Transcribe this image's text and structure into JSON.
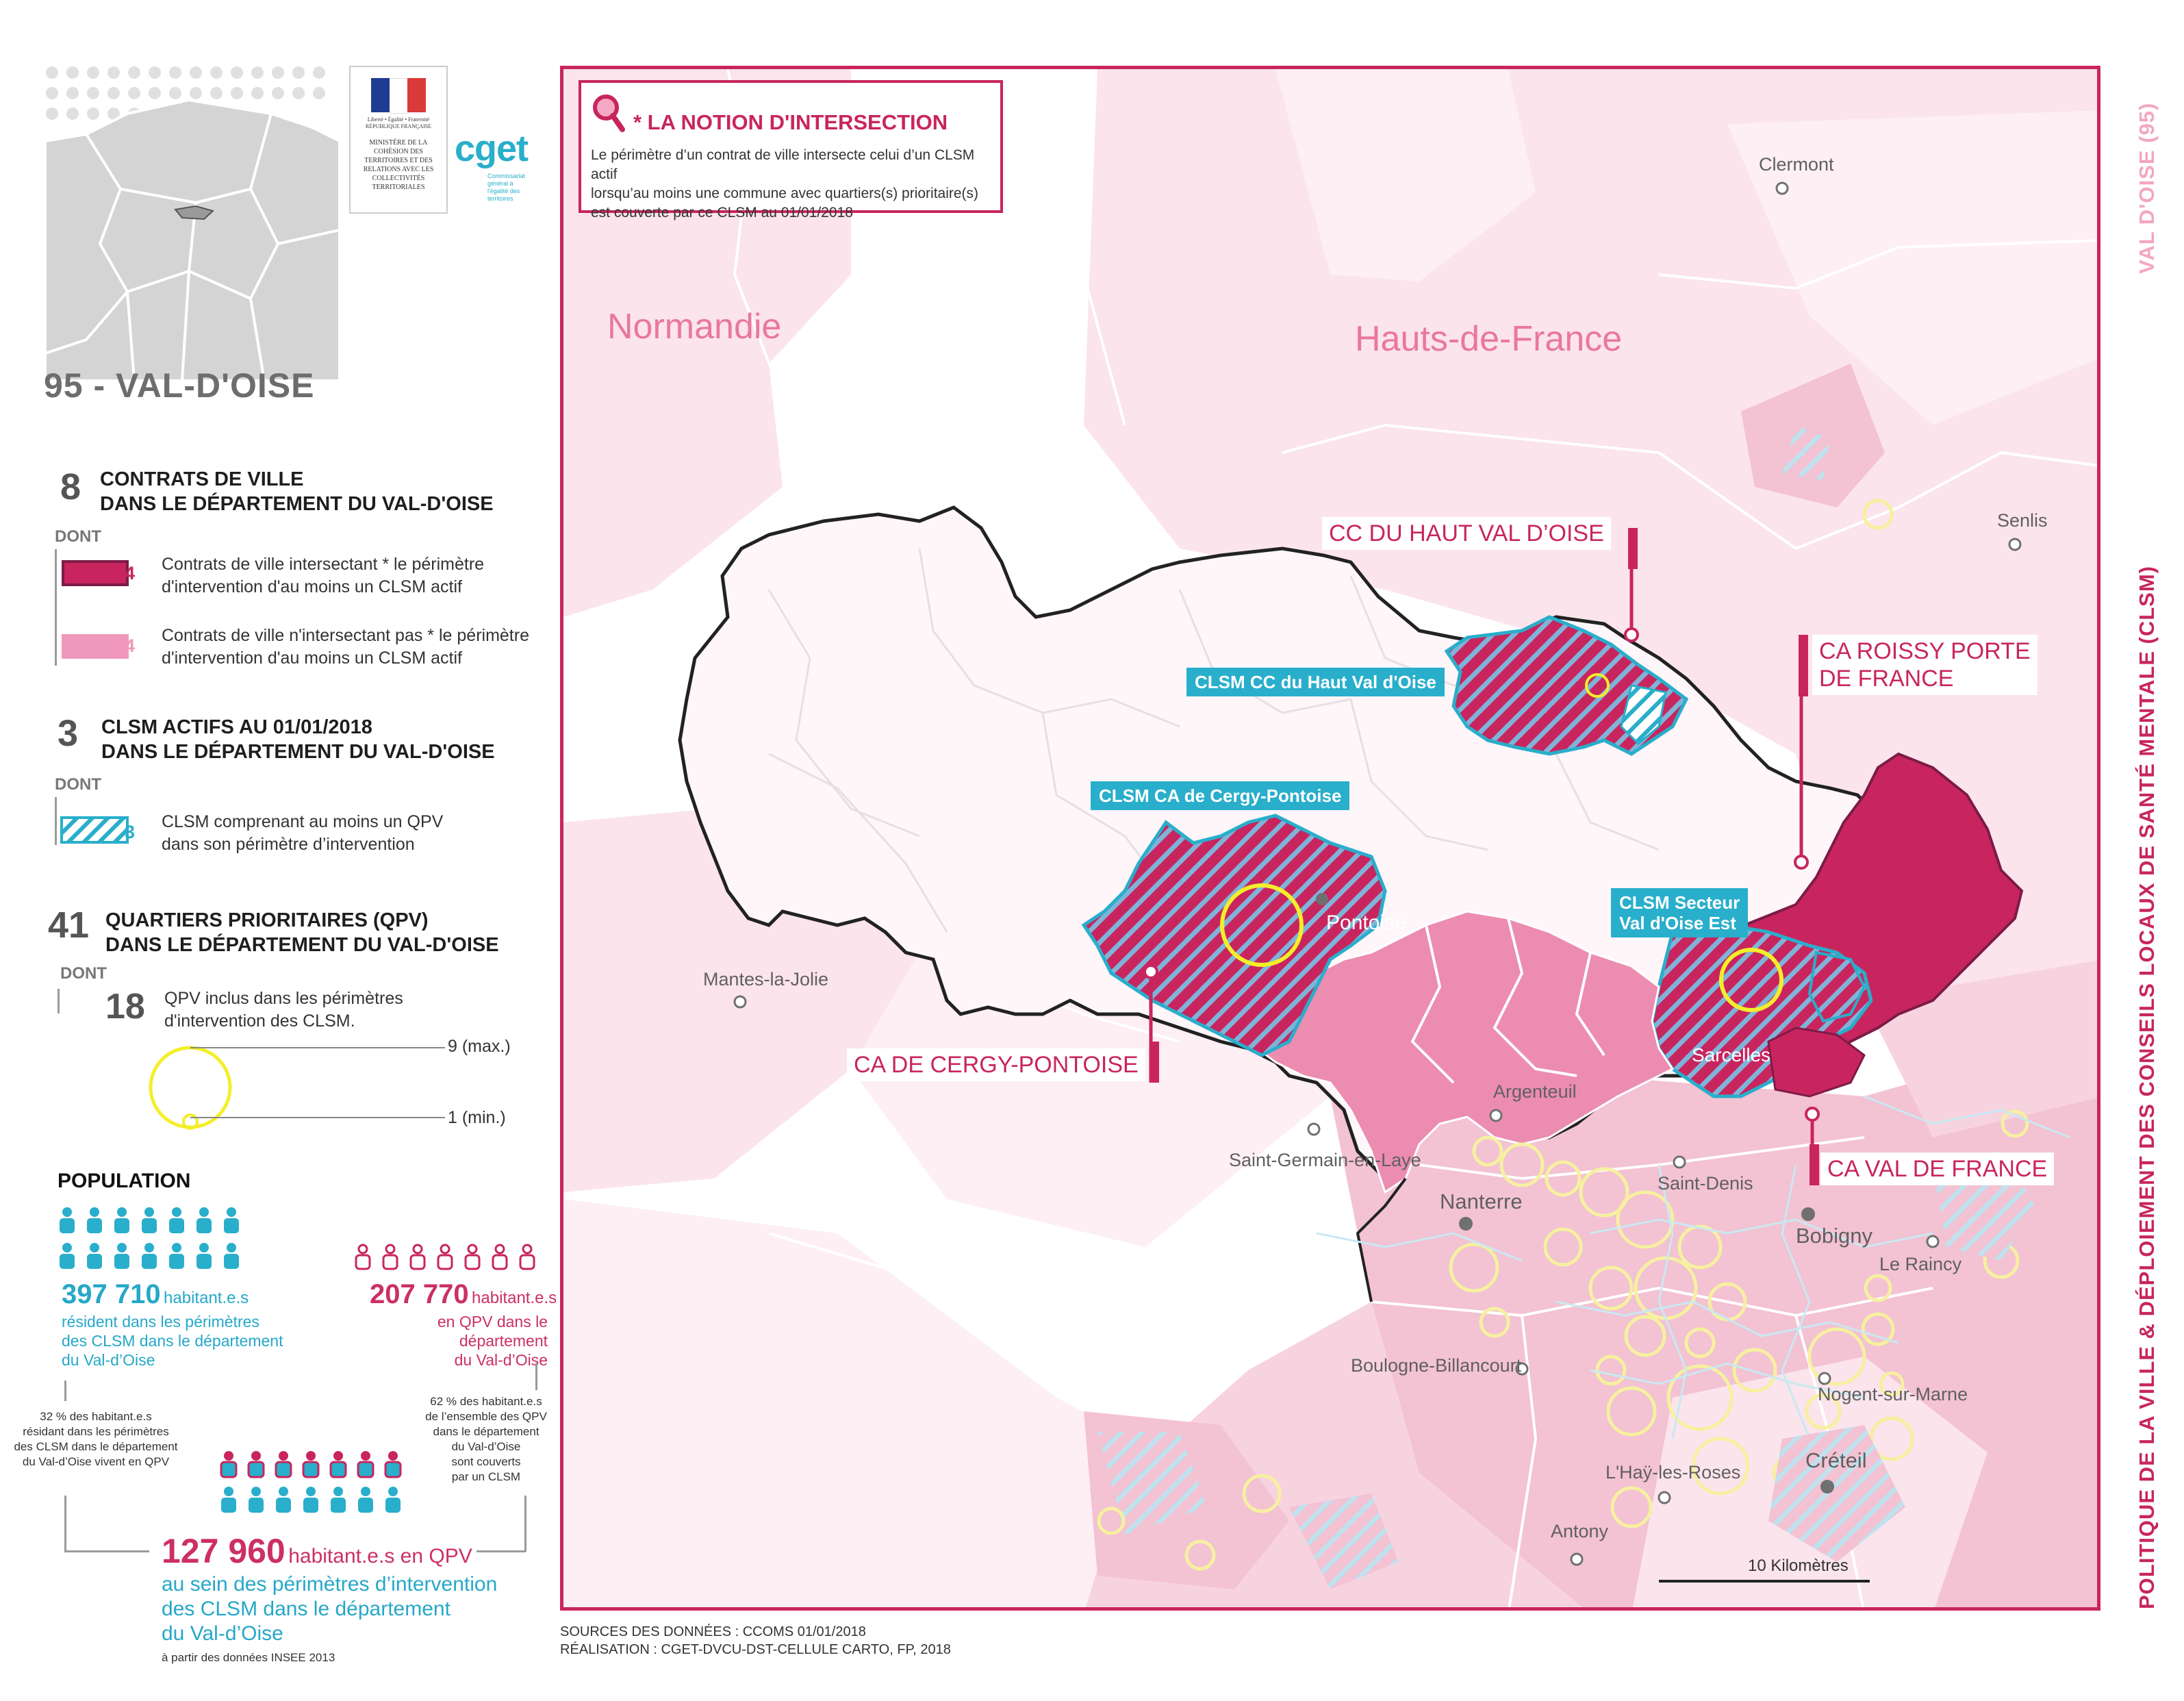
{
  "left_panel": {
    "dept_title": "95 - VAL-D'OISE",
    "logo": {
      "ministry": "MINISTÈRE DE LA COHÉSION DES TERRITOIRES ET DES RELATIONS AVEC LES COLLECTIVITÉS TERRITORIALES",
      "motto": "Liberté • Égalité • Fraternité RÉPUBLIQUE FRANÇAISE",
      "cget": "cget",
      "cget_sub": "Commissariat général à l'égalité des territoires"
    },
    "contrats": {
      "count": "8",
      "title_line1": "CONTRATS DE VILLE",
      "title_line2": "DANS LE DÉPARTEMENT DU VAL-D'OISE",
      "dont": "DONT",
      "items": [
        {
          "num": "4",
          "text_line1": "Contrats de ville intersectant * le périmètre",
          "text_line2": "d'intervention d'au moins un CLSM actif",
          "color": "#c8255f"
        },
        {
          "num": "4",
          "text_line1": "Contrats de ville n'intersectant pas * le périmètre",
          "text_line2": "d'intervention d'au moins un CLSM actif",
          "color": "#f098bb"
        }
      ]
    },
    "clsm": {
      "count": "3",
      "title_line1": "CLSM ACTIFS AU 01/01/2018",
      "title_line2": "DANS LE DÉPARTEMENT DU VAL-D'OISE",
      "dont": "DONT",
      "item": {
        "num": "3",
        "text_line1": "CLSM comprenant au moins un QPV",
        "text_line2": "dans son périmètre d’intervention",
        "color": "#29aecb"
      }
    },
    "qpv": {
      "count": "41",
      "title_line1": "QUARTIERS PRIORITAIRES (QPV)",
      "title_line2": "DANS LE DÉPARTEMENT DU VAL-D'OISE",
      "dont": "DONT",
      "sub_num": "18",
      "sub_text_line1": "QPV inclus dans les périmètres",
      "sub_text_line2": "d'intervention des CLSM.",
      "max_label": "9 (max.)",
      "min_label": "1 (min.)"
    },
    "population": {
      "title": "POPULATION",
      "left_value": "397 710",
      "left_unit": "habitant.e.s",
      "left_line1": "résident dans les périmètres",
      "left_line2": "des CLSM dans le département",
      "left_line3": "du Val-d’Oise",
      "right_value": "207 770",
      "right_unit": "habitant.e.s",
      "right_line1": "en QPV dans le département",
      "right_line2": "du Val-d’Oise",
      "note_left": [
        "32 % des habitant.e.s",
        "résidant dans les périmètres",
        "des CLSM dans le département",
        "du Val-d’Oise vivent en QPV"
      ],
      "note_right": [
        "62 % des habitant.e.s",
        "de l’ensemble des QPV",
        "dans le département",
        "du Val-d’Oise",
        "sont couverts",
        "par un CLSM"
      ],
      "bottom_value": "127 960",
      "bottom_unit": "habitant.e.s en QPV",
      "bottom_line1": "au sein des périmètres d’intervention",
      "bottom_line2": "des CLSM dans le département",
      "bottom_line3": "du Val-d’Oise",
      "bottom_note": "à partir des données INSEE 2013"
    }
  },
  "map": {
    "notion": {
      "title": "* LA NOTION D'INTERSECTION",
      "line1": "Le périmètre d’un contrat de ville intersecte celui d’un CLSM actif",
      "line2": "lorsqu’au moins une commune avec quartiers(s) prioritaire(s)",
      "line3": "est couverte par ce CLSM au 01/01/2018"
    },
    "regions": {
      "normandie": "Normandie",
      "hdf": "Hauts-de-France"
    },
    "cities": {
      "clermont": "Clermont",
      "senlis": "Senlis",
      "mantes": "Mantes-la-Jolie",
      "pontoise": "Pontoise",
      "sarcelles": "Sarcelles",
      "argenteuil": "Argenteuil",
      "stgermain": "Saint-Germain-en-Laye",
      "stdenis": "Saint-Denis",
      "nanterre": "Nanterre",
      "bobigny": "Bobigny",
      "raincy": "Le Raincy",
      "boulogne": "Boulogne-Billancourt",
      "nogent": "Nogent-sur-Marne",
      "creteil": "Créteil",
      "lhay": "L'Haÿ-les-Roses",
      "antony": "Antony"
    },
    "ca_labels": {
      "haut_val": "CC DU HAUT VAL D’OISE",
      "roissy_1": "CA ROISSY PORTE",
      "roissy_2": "DE FRANCE",
      "cergy": "CA DE CERGY-PONTOISE",
      "val_de_france": "CA VAL DE FRANCE"
    },
    "clsm_labels": {
      "haut_val": "CLSM CC du Haut Val d'Oise",
      "cergy": "CLSM CA de Cergy-Pontoise",
      "est_1": "CLSM Secteur",
      "est_2": "Val d'Oise Est"
    },
    "scale": "10 Kilomètres"
  },
  "sources": {
    "line1": "SOURCES DES DONNÉES : CCOMS 01/01/2018",
    "line2": "RÉALISATION : CGET-DVCU-DST-CELLULE CARTO, FP, 2018"
  },
  "sidebar": {
    "title": "POLITIQUE DE LA VILLE & DÉPLOIEMENT DES CONSEILS LOCAUX DE SANTÉ MENTALE (CLSM)",
    "dept": "VAL D'OISE (95)"
  },
  "colors": {
    "magenta": "#c8255f",
    "pink": "#f098bb",
    "light_pink": "#f9dde7",
    "cyan": "#29aecb",
    "yellow": "#f4ee2a"
  }
}
